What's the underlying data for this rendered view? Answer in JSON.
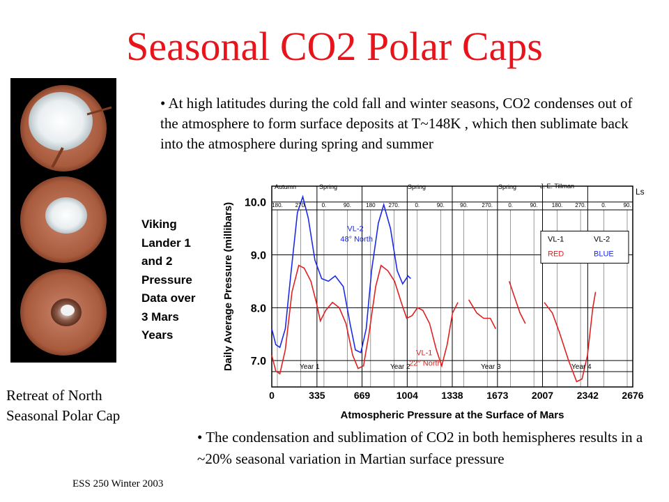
{
  "title": "Seasonal CO2 Polar Caps",
  "bullet_top": {
    "dot": "•",
    "text": " At high latitudes during the cold fall and winter seasons, CO2 condenses out of the atmosphere to form surface deposits at T~148K , which then sublimate back into the atmosphere during spring and summer"
  },
  "bullet_bottom": {
    "dot": "•",
    "text": " The condensation and sublimation of CO2 in both hemispheres results in a ~20% seasonal variation in Martian surface pressure"
  },
  "side_caption": [
    "Viking",
    "Lander 1",
    "and 2",
    "Pressure",
    "Data over",
    "3 Mars",
    "Years"
  ],
  "photo_caption": [
    "Retreat of North",
    "Seasonal Polar Cap"
  ],
  "footer": "ESS 250 Winter 2003",
  "colors": {
    "title": "#e8141b",
    "vl1": "#e02020",
    "vl2": "#1a2ae8"
  },
  "chart_data": {
    "type": "line",
    "title": "Atmospheric Pressure at the Surface of Mars",
    "ylabel": "Daily Average Pressure (millibars)",
    "xlabel": "",
    "x_ticks": [
      "0",
      "335",
      "669",
      "1004",
      "1338",
      "1673",
      "2007",
      "2342",
      "2676"
    ],
    "y_ticks": [
      "7.0",
      "8.0",
      "9.0",
      "10.0"
    ],
    "xlim": [
      0,
      2676
    ],
    "ylim": [
      6.5,
      10.3
    ],
    "ls_ticks": [
      "180.",
      "270.",
      "0.",
      "90.",
      "180",
      "270.",
      "0.",
      "90.",
      "90.",
      "270.",
      "0.",
      "90.",
      "180.",
      "270.",
      "0.",
      "90."
    ],
    "season_labels": [
      "Autumn",
      "Spring",
      "Spring",
      "Spring"
    ],
    "author_label": "J. E. Tillman",
    "ls_label": "Ls",
    "year_labels": [
      "Year 1",
      "Year 2",
      "Year 3",
      "Year 4"
    ],
    "legend": {
      "col1": "VL-1",
      "col2": "VL-2",
      "val1": "RED",
      "val2": "BLUE"
    },
    "annotations": {
      "vl2": [
        "VL-2",
        "48° North"
      ],
      "vl1": [
        "VL-1",
        "22° North"
      ]
    },
    "series": [
      {
        "name": "VL-1",
        "color": "#e02020",
        "segments": [
          [
            [
              0,
              7.1
            ],
            [
              30,
              6.8
            ],
            [
              60,
              6.75
            ],
            [
              100,
              7.2
            ],
            [
              150,
              8.3
            ],
            [
              200,
              8.8
            ],
            [
              240,
              8.75
            ],
            [
              290,
              8.5
            ],
            [
              330,
              8.1
            ],
            [
              360,
              7.75
            ],
            [
              400,
              7.95
            ],
            [
              450,
              8.1
            ],
            [
              500,
              8.0
            ],
            [
              550,
              7.7
            ],
            [
              600,
              7.1
            ],
            [
              640,
              6.85
            ],
            [
              680,
              6.9
            ],
            [
              720,
              7.5
            ],
            [
              770,
              8.4
            ],
            [
              810,
              8.8
            ],
            [
              860,
              8.7
            ],
            [
              910,
              8.5
            ],
            [
              960,
              8.1
            ],
            [
              1000,
              7.8
            ],
            [
              1040,
              7.85
            ],
            [
              1080,
              8.0
            ],
            [
              1120,
              7.95
            ],
            [
              1170,
              7.7
            ],
            [
              1220,
              7.2
            ],
            [
              1260,
              6.9
            ],
            [
              1300,
              7.3
            ],
            [
              1340,
              7.9
            ],
            [
              1380,
              8.1
            ]
          ],
          [
            [
              1460,
              8.15
            ],
            [
              1520,
              7.9
            ],
            [
              1570,
              7.8
            ],
            [
              1620,
              7.8
            ],
            [
              1660,
              7.6
            ]
          ],
          [
            [
              1760,
              8.5
            ],
            [
              1800,
              8.2
            ],
            [
              1840,
              7.9
            ],
            [
              1880,
              7.7
            ]
          ],
          [
            [
              2020,
              8.1
            ],
            [
              2080,
              7.9
            ],
            [
              2130,
              7.55
            ],
            [
              2200,
              7.0
            ],
            [
              2260,
              6.6
            ],
            [
              2300,
              6.65
            ],
            [
              2340,
              7.1
            ],
            [
              2380,
              8.0
            ],
            [
              2400,
              8.3
            ]
          ]
        ]
      },
      {
        "name": "VL-2",
        "color": "#1a2ae8",
        "segments": [
          [
            [
              0,
              7.6
            ],
            [
              30,
              7.3
            ],
            [
              60,
              7.25
            ],
            [
              100,
              7.6
            ],
            [
              140,
              8.6
            ],
            [
              190,
              9.8
            ],
            [
              230,
              10.1
            ],
            [
              270,
              9.7
            ],
            [
              320,
              8.9
            ],
            [
              370,
              8.55
            ],
            [
              420,
              8.5
            ],
            [
              470,
              8.6
            ],
            [
              530,
              8.4
            ],
            [
              580,
              7.7
            ],
            [
              620,
              7.2
            ],
            [
              660,
              7.15
            ],
            [
              700,
              7.6
            ],
            [
              740,
              8.7
            ],
            [
              790,
              9.6
            ],
            [
              830,
              9.95
            ],
            [
              880,
              9.5
            ],
            [
              930,
              8.7
            ],
            [
              970,
              8.45
            ],
            [
              1010,
              8.6
            ],
            [
              1030,
              8.55
            ]
          ]
        ]
      }
    ]
  }
}
